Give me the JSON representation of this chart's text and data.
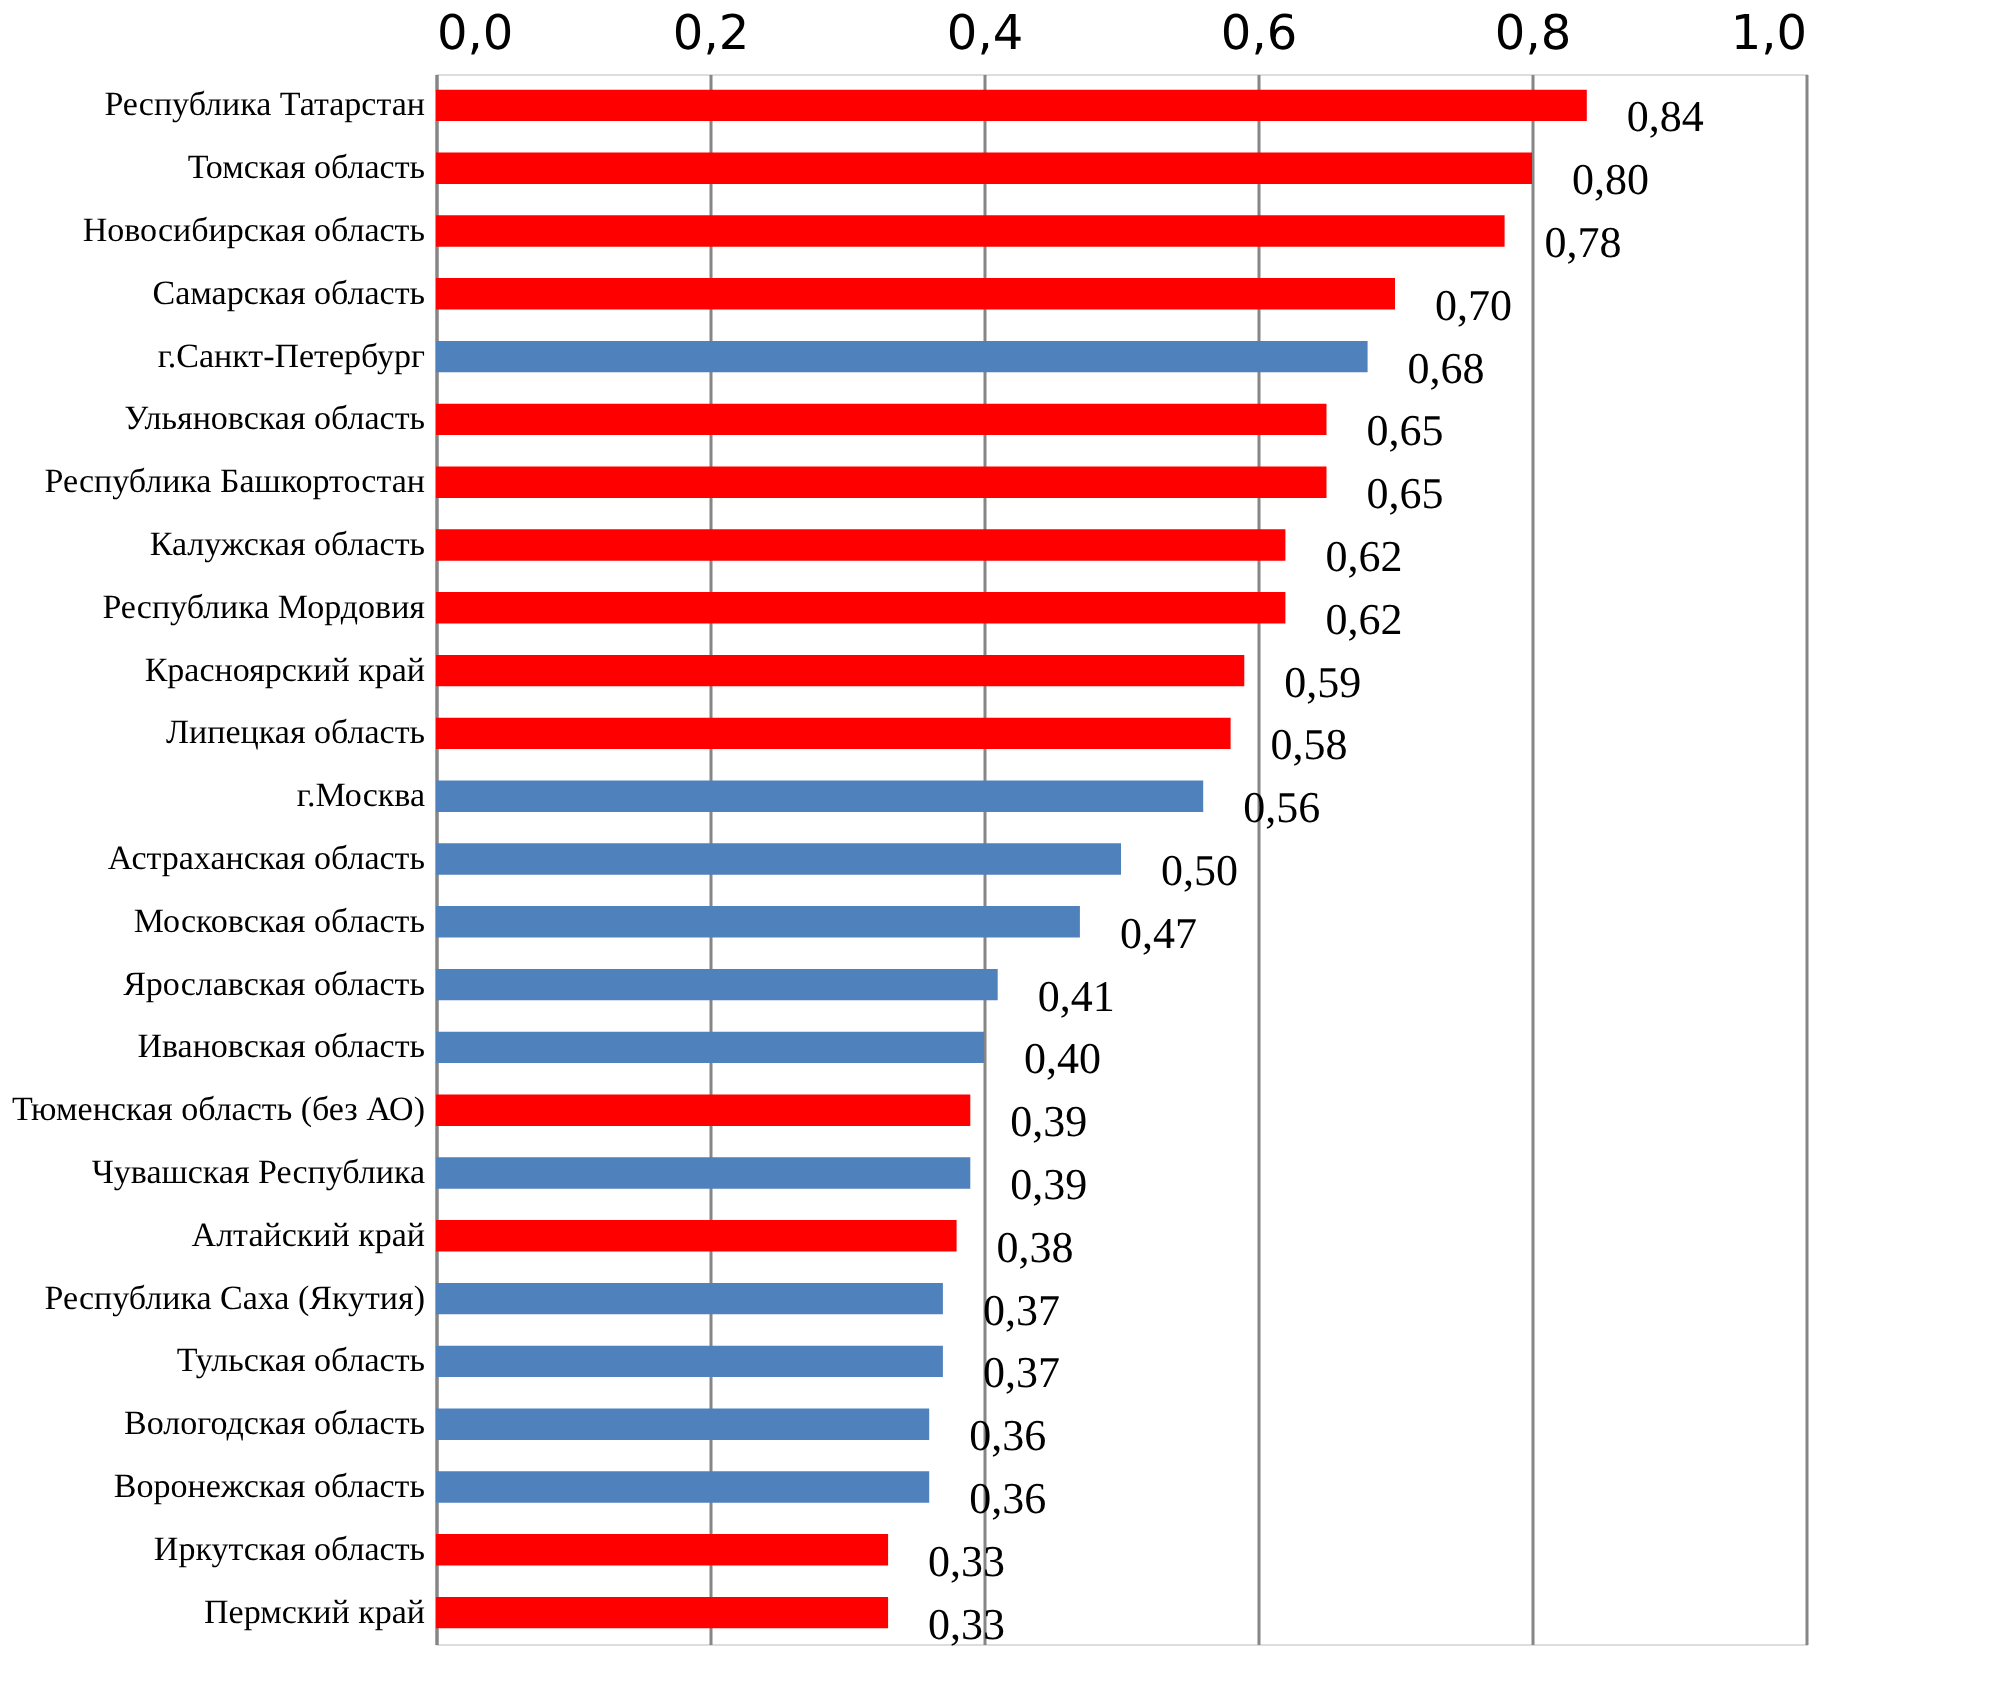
{
  "chart_data": {
    "type": "bar",
    "orientation": "horizontal",
    "categories": [
      "Республика Татарстан",
      "Томская область",
      "Новосибирская область",
      "Самарская область",
      "г.Санкт-Петербург",
      "Ульяновская область",
      "Республика Башкортостан",
      "Калужская область",
      "Республика Мордовия",
      "Красноярский край",
      "Липецкая область",
      "г.Москва",
      "Астраханская область",
      "Московская область",
      "Ярославская область",
      "Ивановская область",
      "Тюменская область (без АО)",
      "Чувашская Республика",
      "Алтайский край",
      "Республика Саха (Якутия)",
      "Тульская область",
      "Вологодская область",
      "Воронежская область",
      "Иркутская область",
      "Пермский край"
    ],
    "values": [
      0.84,
      0.8,
      0.78,
      0.7,
      0.68,
      0.65,
      0.65,
      0.62,
      0.62,
      0.59,
      0.58,
      0.56,
      0.5,
      0.47,
      0.41,
      0.4,
      0.39,
      0.39,
      0.38,
      0.37,
      0.37,
      0.36,
      0.36,
      0.33,
      0.33
    ],
    "value_labels": [
      "0,84",
      "0,80",
      "0,78",
      "0,70",
      "0,68",
      "0,65",
      "0,65",
      "0,62",
      "0,62",
      "0,59",
      "0,58",
      "0,56",
      "0,50",
      "0,47",
      "0,41",
      "0,40",
      "0,39",
      "0,39",
      "0,38",
      "0,37",
      "0,37",
      "0,36",
      "0,36",
      "0,33",
      "0,33"
    ],
    "colors": [
      "#ff0000",
      "#ff0000",
      "#ff0000",
      "#ff0000",
      "#4f81bd",
      "#ff0000",
      "#ff0000",
      "#ff0000",
      "#ff0000",
      "#ff0000",
      "#ff0000",
      "#4f81bd",
      "#4f81bd",
      "#4f81bd",
      "#4f81bd",
      "#4f81bd",
      "#ff0000",
      "#4f81bd",
      "#ff0000",
      "#4f81bd",
      "#4f81bd",
      "#4f81bd",
      "#4f81bd",
      "#ff0000",
      "#ff0000"
    ],
    "xlim": [
      0,
      1
    ],
    "xticks": [
      {
        "value": 0,
        "label": "0,0"
      },
      {
        "value": 0.2,
        "label": "0,2"
      },
      {
        "value": 0.4,
        "label": "0,4"
      },
      {
        "value": 0.6,
        "label": "0,6"
      },
      {
        "value": 0.8,
        "label": "0,8"
      },
      {
        "value": 1,
        "label": "1,0"
      }
    ],
    "grid": "x"
  }
}
